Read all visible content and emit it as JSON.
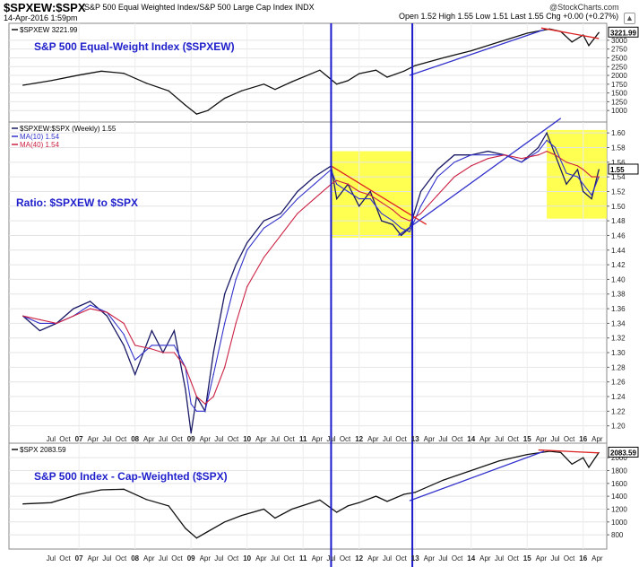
{
  "header": {
    "symbol": "$SPXEW:$SPX",
    "description": "S&P 500 Equal Weighted Index/S&P 500 Large Cap Index  INDX",
    "date": "14-Apr-2016 1:59pm",
    "quote": "Open 1.52  High 1.55  Low 1.51  Last 1.55  Chg +0.00 (+0.27%)",
    "brand": "@StockCharts.com",
    "settings_icon": "triangle-icon"
  },
  "chart_data": [
    {
      "type": "line",
      "panel": "top",
      "legend": "$SPXEW 3221.99",
      "annotation": "S&P 500 Equal-Weight Index ($SPXEW)",
      "last_label": "3221.99",
      "yticks": [
        1000,
        1250,
        1500,
        1750,
        2000,
        2250,
        2500,
        2750,
        3000
      ],
      "ylim": [
        750,
        3380
      ],
      "x": [
        2006.0,
        2006.5,
        2007.0,
        2007.4,
        2007.8,
        2008.2,
        2008.6,
        2008.9,
        2009.1,
        2009.3,
        2009.6,
        2009.9,
        2010.3,
        2010.5,
        2010.8,
        2011.3,
        2011.6,
        2011.8,
        2012.0,
        2012.3,
        2012.5,
        2012.8,
        2013.0,
        2013.5,
        2014.0,
        2014.5,
        2015.0,
        2015.4,
        2015.6,
        2015.8,
        2016.0,
        2016.1,
        2016.28
      ],
      "series": [
        {
          "values": [
            1720,
            1850,
            2010,
            2120,
            2060,
            1780,
            1560,
            1150,
            900,
            1000,
            1350,
            1560,
            1750,
            1600,
            1820,
            2150,
            1750,
            1850,
            2050,
            2150,
            1950,
            2120,
            2280,
            2500,
            2700,
            2950,
            3200,
            3320,
            3250,
            2950,
            3150,
            2850,
            3220
          ]
        }
      ],
      "trendlines": [
        {
          "color": "#3333cc",
          "x": [
            2012.9,
            2015.3
          ],
          "values": [
            2000,
            3300
          ]
        },
        {
          "color": "#dd2222",
          "x": [
            2015.25,
            2016.28
          ],
          "values": [
            3350,
            3050
          ]
        }
      ]
    },
    {
      "type": "line",
      "panel": "middle",
      "legend": [
        "$SPXEW:$SPX (Weekly) 1.55",
        "MA(10) 1.54",
        "MA(40) 1.54"
      ],
      "annotation": "Ratio: $SPXEW to $SPX",
      "last_label": "1.55",
      "yticks": [
        1.2,
        1.22,
        1.24,
        1.26,
        1.28,
        1.3,
        1.32,
        1.34,
        1.36,
        1.38,
        1.4,
        1.42,
        1.44,
        1.46,
        1.48,
        1.5,
        1.52,
        1.54,
        1.56,
        1.58,
        1.6
      ],
      "ylim": [
        1.18,
        1.61
      ],
      "x": [
        2006.0,
        2006.3,
        2006.6,
        2006.9,
        2007.2,
        2007.5,
        2007.8,
        2008.0,
        2008.3,
        2008.5,
        2008.7,
        2008.9,
        2009.0,
        2009.1,
        2009.25,
        2009.4,
        2009.6,
        2009.8,
        2010.0,
        2010.3,
        2010.6,
        2010.9,
        2011.2,
        2011.5,
        2011.6,
        2011.8,
        2012.0,
        2012.2,
        2012.4,
        2012.6,
        2012.75,
        2012.9,
        2013.1,
        2013.4,
        2013.7,
        2014.0,
        2014.3,
        2014.6,
        2014.9,
        2015.2,
        2015.35,
        2015.5,
        2015.7,
        2015.9,
        2016.0,
        2016.15,
        2016.28
      ],
      "series": [
        {
          "name": "$SPXEW:$SPX",
          "color": "#1a1a66",
          "values": [
            1.35,
            1.33,
            1.34,
            1.36,
            1.37,
            1.35,
            1.31,
            1.27,
            1.33,
            1.3,
            1.33,
            1.25,
            1.19,
            1.24,
            1.22,
            1.3,
            1.38,
            1.42,
            1.45,
            1.48,
            1.49,
            1.52,
            1.54,
            1.555,
            1.51,
            1.53,
            1.5,
            1.52,
            1.48,
            1.475,
            1.46,
            1.47,
            1.52,
            1.55,
            1.57,
            1.57,
            1.575,
            1.57,
            1.56,
            1.58,
            1.6,
            1.57,
            1.53,
            1.55,
            1.52,
            1.51,
            1.55
          ]
        },
        {
          "name": "MA(10)",
          "color": "#3333cc",
          "values": [
            1.35,
            1.34,
            1.34,
            1.35,
            1.365,
            1.355,
            1.325,
            1.29,
            1.31,
            1.31,
            1.31,
            1.28,
            1.23,
            1.22,
            1.22,
            1.27,
            1.34,
            1.4,
            1.44,
            1.47,
            1.485,
            1.51,
            1.53,
            1.55,
            1.53,
            1.52,
            1.51,
            1.51,
            1.49,
            1.48,
            1.47,
            1.465,
            1.5,
            1.54,
            1.56,
            1.57,
            1.57,
            1.57,
            1.56,
            1.575,
            1.59,
            1.58,
            1.545,
            1.54,
            1.53,
            1.515,
            1.54
          ]
        },
        {
          "name": "MA(40)",
          "color": "#cc2244",
          "values": [
            1.35,
            1.345,
            1.34,
            1.35,
            1.36,
            1.355,
            1.34,
            1.31,
            1.305,
            1.3,
            1.3,
            1.28,
            1.26,
            1.24,
            1.23,
            1.24,
            1.28,
            1.34,
            1.39,
            1.43,
            1.46,
            1.49,
            1.51,
            1.53,
            1.535,
            1.53,
            1.52,
            1.515,
            1.505,
            1.495,
            1.485,
            1.48,
            1.49,
            1.515,
            1.54,
            1.555,
            1.565,
            1.57,
            1.565,
            1.57,
            1.575,
            1.57,
            1.56,
            1.555,
            1.55,
            1.54,
            1.54
          ]
        }
      ],
      "trendlines": [
        {
          "color": "#dd2222",
          "x": [
            2011.5,
            2013.2
          ],
          "values": [
            1.555,
            1.475
          ]
        },
        {
          "color": "#3333cc",
          "x": [
            2012.7,
            2015.6
          ],
          "values": [
            1.46,
            1.62
          ]
        }
      ],
      "highlights": [
        {
          "x": [
            2011.5,
            2012.95
          ],
          "y": [
            1.457,
            1.575
          ],
          "color": "#ffff33"
        },
        {
          "x": [
            2015.35,
            2016.42
          ],
          "y": [
            1.483,
            1.604
          ],
          "color": "#ffff33"
        }
      ]
    },
    {
      "type": "line",
      "panel": "bottom",
      "legend": "$SPX 2083.59",
      "annotation": "S&P 500 Index - Cap-Weighted ($SPX)",
      "last_label": "2083.59",
      "yticks": [
        800,
        1000,
        1200,
        1400,
        1600,
        1800,
        2000
      ],
      "ylim": [
        620,
        2170
      ],
      "x": [
        2006.0,
        2006.5,
        2007.0,
        2007.4,
        2007.8,
        2008.2,
        2008.6,
        2008.9,
        2009.1,
        2009.3,
        2009.6,
        2009.9,
        2010.3,
        2010.5,
        2010.8,
        2011.3,
        2011.6,
        2011.8,
        2012.0,
        2012.3,
        2012.5,
        2012.8,
        2013.0,
        2013.5,
        2014.0,
        2014.5,
        2015.0,
        2015.4,
        2015.6,
        2015.8,
        2016.0,
        2016.1,
        2016.28
      ],
      "series": [
        {
          "values": [
            1280,
            1300,
            1430,
            1500,
            1510,
            1350,
            1250,
            900,
            750,
            850,
            1000,
            1100,
            1200,
            1060,
            1200,
            1340,
            1150,
            1250,
            1300,
            1400,
            1320,
            1430,
            1460,
            1650,
            1800,
            1950,
            2050,
            2100,
            2080,
            1900,
            2000,
            1850,
            2080
          ]
        }
      ],
      "trendlines": [
        {
          "color": "#3333cc",
          "x": [
            2012.9,
            2015.3
          ],
          "values": [
            1330,
            2100
          ]
        },
        {
          "color": "#dd2222",
          "x": [
            2015.2,
            2016.28
          ],
          "values": [
            2120,
            2075
          ]
        }
      ]
    }
  ],
  "axis": {
    "xlim": [
      2005.75,
      2016.42
    ],
    "tick_labels": [
      {
        "x": 2006.5,
        "label": "Jul",
        "bold": false
      },
      {
        "x": 2006.75,
        "label": "Oct",
        "bold": false
      },
      {
        "x": 2007.0,
        "label": "07",
        "bold": true
      },
      {
        "x": 2007.25,
        "label": "Apr",
        "bold": false
      },
      {
        "x": 2007.5,
        "label": "Jul",
        "bold": false
      },
      {
        "x": 2007.75,
        "label": "Oct",
        "bold": false
      },
      {
        "x": 2008.0,
        "label": "08",
        "bold": true
      },
      {
        "x": 2008.25,
        "label": "Apr",
        "bold": false
      },
      {
        "x": 2008.5,
        "label": "Jul",
        "bold": false
      },
      {
        "x": 2008.75,
        "label": "Oct",
        "bold": false
      },
      {
        "x": 2009.0,
        "label": "09",
        "bold": true
      },
      {
        "x": 2009.25,
        "label": "Apr",
        "bold": false
      },
      {
        "x": 2009.5,
        "label": "Jul",
        "bold": false
      },
      {
        "x": 2009.75,
        "label": "Oct",
        "bold": false
      },
      {
        "x": 2010.0,
        "label": "10",
        "bold": true
      },
      {
        "x": 2010.25,
        "label": "Apr",
        "bold": false
      },
      {
        "x": 2010.5,
        "label": "Jul",
        "bold": false
      },
      {
        "x": 2010.75,
        "label": "Oct",
        "bold": false
      },
      {
        "x": 2011.0,
        "label": "11",
        "bold": true
      },
      {
        "x": 2011.25,
        "label": "Apr",
        "bold": false
      },
      {
        "x": 2011.5,
        "label": "Jul",
        "bold": false
      },
      {
        "x": 2011.75,
        "label": "Oct",
        "bold": false
      },
      {
        "x": 2012.0,
        "label": "12",
        "bold": true
      },
      {
        "x": 2012.25,
        "label": "Apr",
        "bold": false
      },
      {
        "x": 2012.5,
        "label": "Jul",
        "bold": false
      },
      {
        "x": 2012.75,
        "label": "Oct",
        "bold": false
      },
      {
        "x": 2013.0,
        "label": "13",
        "bold": true
      },
      {
        "x": 2013.25,
        "label": "Apr",
        "bold": false
      },
      {
        "x": 2013.5,
        "label": "Jul",
        "bold": false
      },
      {
        "x": 2013.75,
        "label": "Oct",
        "bold": false
      },
      {
        "x": 2014.0,
        "label": "14",
        "bold": true
      },
      {
        "x": 2014.25,
        "label": "Apr",
        "bold": false
      },
      {
        "x": 2014.5,
        "label": "Jul",
        "bold": false
      },
      {
        "x": 2014.75,
        "label": "Oct",
        "bold": false
      },
      {
        "x": 2015.0,
        "label": "15",
        "bold": true
      },
      {
        "x": 2015.25,
        "label": "Apr",
        "bold": false
      },
      {
        "x": 2015.5,
        "label": "Jul",
        "bold": false
      },
      {
        "x": 2015.75,
        "label": "Oct",
        "bold": false
      },
      {
        "x": 2016.0,
        "label": "16",
        "bold": true
      },
      {
        "x": 2016.25,
        "label": "Apr",
        "bold": false
      }
    ],
    "verticals": [
      2011.5,
      2012.95
    ]
  },
  "colors": {
    "price": "#111111",
    "annotation": "#1f1fcc",
    "vertical": "#1a1acc",
    "highlight": "#ffff33"
  }
}
